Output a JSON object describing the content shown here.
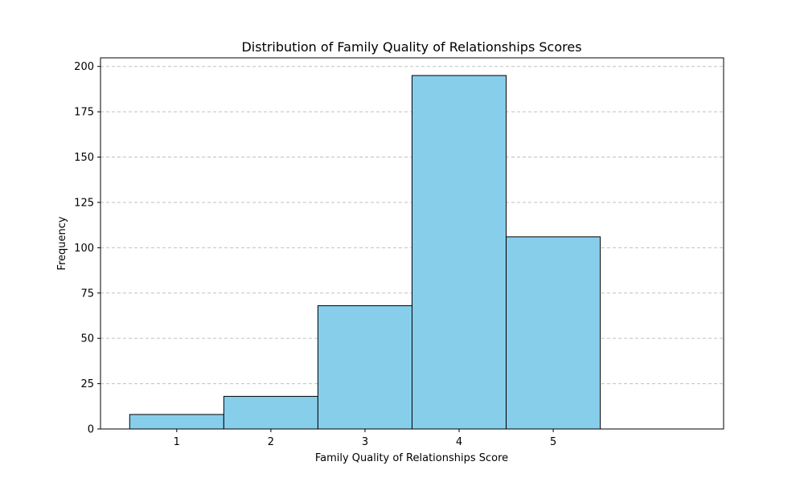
{
  "chart_data": {
    "type": "bar",
    "title": "Distribution of Family Quality of Relationships Scores",
    "xlabel": "Family Quality of Relationships Score",
    "ylabel": "Frequency",
    "categories": [
      "1",
      "2",
      "3",
      "4",
      "5",
      ""
    ],
    "values": [
      8,
      18,
      68,
      195,
      106,
      0
    ],
    "xticks": [
      "1",
      "2",
      "3",
      "4",
      "5"
    ],
    "yticks": [
      "0",
      "25",
      "50",
      "75",
      "100",
      "125",
      "150",
      "175",
      "200"
    ],
    "ylim": [
      0,
      204.75
    ],
    "grid": "y-dashed",
    "bar_color": "#87CEEB",
    "edge_color": "#000000",
    "grid_color": "#c0c0c0"
  }
}
